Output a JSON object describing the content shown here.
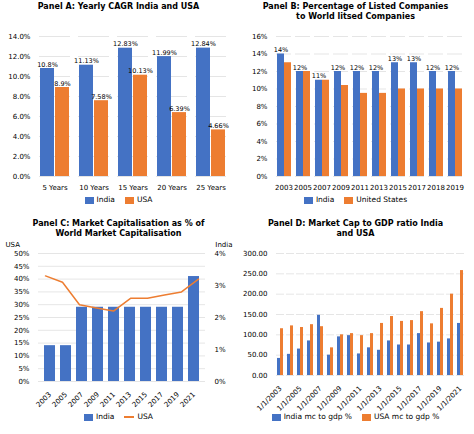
{
  "chart_data": [
    {
      "type": "bar",
      "title": "Panel A: Yearly CAGR India and USA",
      "categories": [
        "5 Years",
        "10 Years",
        "15 Years",
        "20 Years",
        "25 Years"
      ],
      "series": [
        {
          "name": "India",
          "color": "#4472c4",
          "values": [
            10.8,
            11.13,
            12.83,
            11.99,
            12.84
          ],
          "value_labels": [
            "10.8%",
            "11.13%",
            "12.83%",
            "11.99%",
            "12.84%"
          ]
        },
        {
          "name": "USA",
          "color": "#ed7d31",
          "values": [
            8.9,
            7.58,
            10.13,
            6.39,
            4.66
          ],
          "value_labels": [
            "8.9%",
            "7.58%",
            "10.13%",
            "6.39%",
            "4.66%"
          ]
        }
      ],
      "ylim": [
        0,
        14
      ],
      "yticks": [
        {
          "value": 0,
          "label": "0.0%"
        },
        {
          "value": 2,
          "label": "2.0%"
        },
        {
          "value": 4,
          "label": "4.0%"
        },
        {
          "value": 6,
          "label": "6.0%"
        },
        {
          "value": 8,
          "label": "8.0%"
        },
        {
          "value": 10,
          "label": "10.0%"
        },
        {
          "value": 12,
          "label": "12.0%"
        },
        {
          "value": 14,
          "label": "14.0%"
        }
      ],
      "grid": true,
      "legend": "bottom",
      "data_labels": true
    },
    {
      "type": "bar",
      "title": "Panel B: Percentage of Listed Companies\nto World litsed Companies",
      "categories": [
        "2003",
        "2005",
        "2007",
        "2009",
        "2011",
        "2013",
        "2015",
        "2017",
        "2018",
        "2019"
      ],
      "series": [
        {
          "name": "India",
          "color": "#4472c4",
          "values": [
            14,
            12,
            11,
            12,
            12,
            12,
            13,
            13,
            12,
            12
          ],
          "value_labels": [
            "14%",
            "12%",
            "11%",
            "12%",
            "12%",
            "12%",
            "13%",
            "13%",
            "12%",
            "12%"
          ]
        },
        {
          "name": "United States",
          "color": "#ed7d31",
          "values": [
            13,
            12,
            11,
            10.4,
            9.5,
            9.5,
            10,
            10,
            10,
            10
          ]
        }
      ],
      "ylim": [
        0,
        16
      ],
      "yticks": [
        {
          "value": 0,
          "label": "0%"
        },
        {
          "value": 2,
          "label": "2%"
        },
        {
          "value": 4,
          "label": "4%"
        },
        {
          "value": 6,
          "label": "6%"
        },
        {
          "value": 8,
          "label": "8%"
        },
        {
          "value": 10,
          "label": "10%"
        },
        {
          "value": 12,
          "label": "12%"
        },
        {
          "value": 14,
          "label": "14%"
        },
        {
          "value": 16,
          "label": "16%"
        }
      ],
      "grid": true,
      "legend": "bottom",
      "data_labels": true
    },
    {
      "type": "bar",
      "title": "Panel C: Market Capitalisation as % of\nWorld Market Capitalisation",
      "categories": [
        "2003",
        "2005",
        "2007",
        "2009",
        "2011",
        "2013",
        "2015",
        "2017",
        "2019",
        "2021"
      ],
      "series": [
        {
          "name": "India",
          "type": "bar",
          "color": "#4472c4",
          "values": [
            14,
            14,
            29,
            29,
            29,
            29,
            29,
            29,
            29,
            41
          ]
        },
        {
          "name": "USA",
          "type": "line",
          "axis": "y2",
          "color": "#ed7d31",
          "values": [
            3.3,
            3.1,
            2.4,
            2.3,
            2.2,
            2.6,
            2.6,
            2.7,
            2.8,
            3.2
          ]
        }
      ],
      "ylabel": "USA",
      "y2label": "India",
      "ylim": [
        0,
        50
      ],
      "yticks": [
        {
          "value": 0,
          "label": "0%"
        },
        {
          "value": 5,
          "label": "5%"
        },
        {
          "value": 10,
          "label": "10%"
        },
        {
          "value": 15,
          "label": "15%"
        },
        {
          "value": 20,
          "label": "20%"
        },
        {
          "value": 25,
          "label": "25%"
        },
        {
          "value": 30,
          "label": "30%"
        },
        {
          "value": 35,
          "label": "35%"
        },
        {
          "value": 40,
          "label": "40%"
        },
        {
          "value": 45,
          "label": "45%"
        },
        {
          "value": 50,
          "label": "50%"
        }
      ],
      "y2lim": [
        0,
        4
      ],
      "y2ticks": [
        {
          "value": 0,
          "label": "0%"
        },
        {
          "value": 1,
          "label": "1%"
        },
        {
          "value": 2,
          "label": "2%"
        },
        {
          "value": 3,
          "label": "3%"
        },
        {
          "value": 4,
          "label": "4%"
        }
      ],
      "grid": true,
      "legend": "bottom"
    },
    {
      "type": "bar",
      "title": "Panel D: Market Cap to GDP ratio India\nand USA",
      "categories": [
        "1/1/2003",
        null,
        "1/1/2005",
        null,
        "1/1/2007",
        null,
        "1/1/2009",
        null,
        "1/1/2011",
        null,
        "1/1/2013",
        null,
        "1/1/2015",
        null,
        "1/1/2017",
        null,
        "1/1/2019",
        null,
        "1/1/2021"
      ],
      "series": [
        {
          "name": "India mc to gdp %",
          "color": "#4472c4",
          "values": [
            42,
            52,
            65,
            85,
            148,
            50,
            95,
            98,
            53,
            68,
            62,
            85,
            75,
            75,
            103,
            80,
            82,
            90,
            128
          ]
        },
        {
          "name": "USA mc to gdp %",
          "color": "#ed7d31",
          "values": [
            115,
            122,
            118,
            125,
            120,
            68,
            100,
            103,
            98,
            103,
            128,
            145,
            133,
            135,
            157,
            127,
            165,
            200,
            258
          ]
        }
      ],
      "ylim": [
        0,
        300
      ],
      "yticks": [
        {
          "value": 0,
          "label": "0.00"
        },
        {
          "value": 50,
          "label": "50.00"
        },
        {
          "value": 100,
          "label": "100.00"
        },
        {
          "value": 150,
          "label": "150.00"
        },
        {
          "value": 200,
          "label": "200.00"
        },
        {
          "value": 250,
          "label": "250.00"
        },
        {
          "value": 300,
          "label": "300.00"
        }
      ],
      "grid": true,
      "legend": "bottom"
    }
  ]
}
